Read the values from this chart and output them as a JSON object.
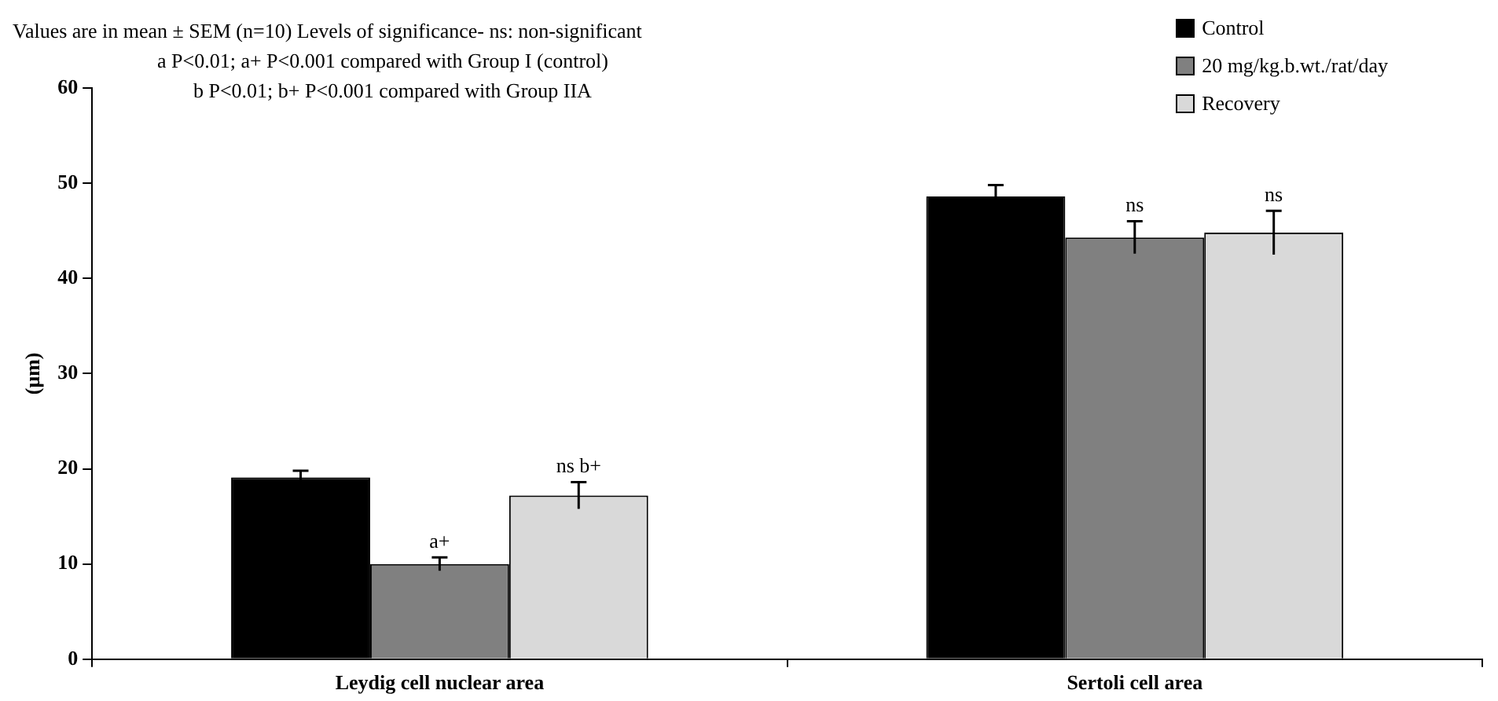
{
  "chart_data": {
    "type": "bar",
    "categories": [
      "Leydig cell nuclear area",
      "Sertoli cell area"
    ],
    "series": [
      {
        "name": "Control",
        "color": "#000000",
        "values": [
          19.1,
          48.6
        ],
        "errors": [
          0.7,
          1.2
        ]
      },
      {
        "name": "20 mg/kg.b.wt./rat/day",
        "color": "#808080",
        "values": [
          10.0,
          44.3
        ],
        "errors": [
          0.7,
          1.7
        ]
      },
      {
        "name": "Recovery",
        "color": "#d9d9d9",
        "values": [
          17.2,
          44.8
        ],
        "errors": [
          1.4,
          2.3
        ]
      }
    ],
    "ylabel": "(μm)",
    "ylim": [
      0,
      60
    ],
    "yticks": [
      0,
      10,
      20,
      30,
      40,
      50,
      60
    ],
    "grid": false,
    "legend": "top right",
    "annotations": [
      "Values are in mean ± SEM (n=10) Levels of significance- ns: non-significant",
      "a P<0.01; a+ P<0.001 compared with Group I (control)",
      "b P<0.01; b+ P<0.001 compared with Group IIA",
      {
        "text": "a+",
        "x": "Leydig cell nuclear area",
        "y": 10.7
      },
      "ns b+",
      {
        "text": "ns",
        "x": "Sertoli cell area",
        "y": 46.0
      },
      "ns"
    ]
  }
}
